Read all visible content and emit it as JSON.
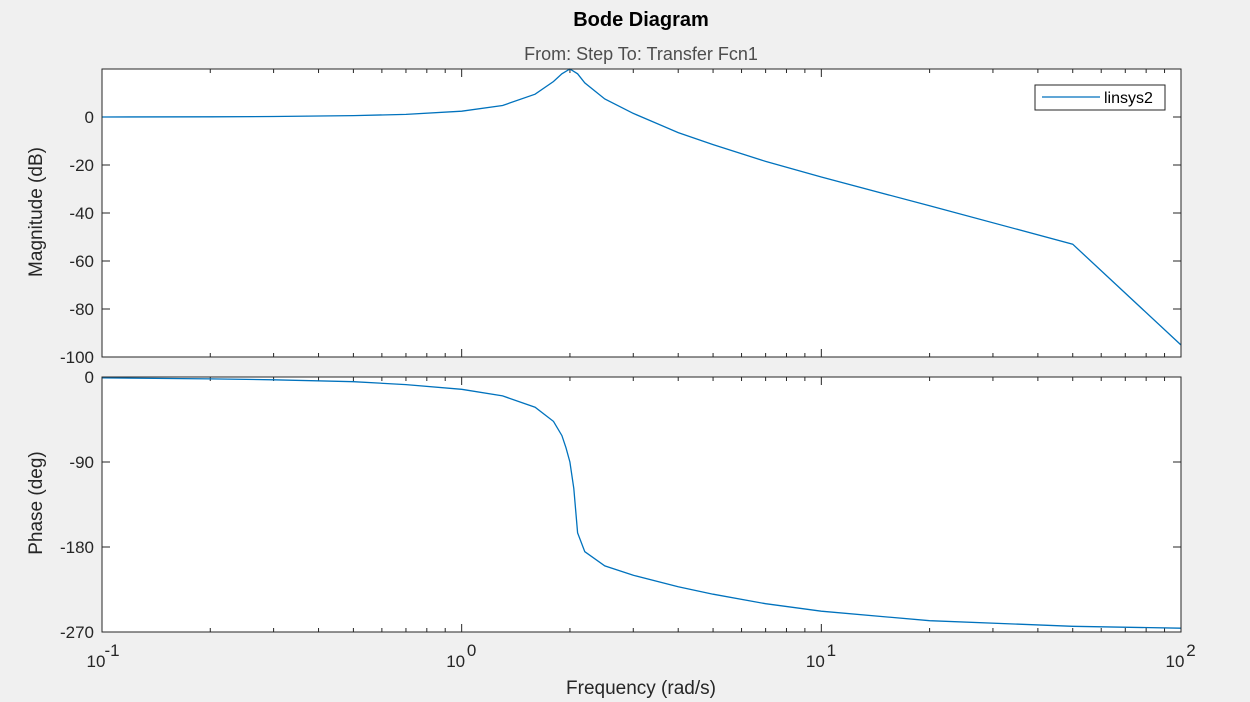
{
  "chart_data": {
    "type": "line",
    "title": "Bode Diagram",
    "subtitle": "From: Step  To: Transfer Fcn1",
    "xlabel": "Frequency  (rad/s)",
    "xscale": "log",
    "xlim": [
      0.1,
      100
    ],
    "x_ticks": [
      {
        "base": "10",
        "exp": "-1"
      },
      {
        "base": "10",
        "exp": "0"
      },
      {
        "base": "10",
        "exp": "1"
      },
      {
        "base": "10",
        "exp": "2"
      }
    ],
    "grid": false,
    "legend": {
      "entries": [
        "linsys2"
      ],
      "placement": "top-right"
    },
    "line_color": "#0072bd",
    "panels": [
      {
        "name": "magnitude",
        "ylabel": "Magnitude (dB)",
        "ylim": [
          -100,
          20
        ],
        "yticks": [
          "0",
          "-20",
          "-40",
          "-60",
          "-80",
          "-100"
        ],
        "series": [
          {
            "name": "linsys2",
            "x": [
              0.1,
              0.2,
              0.3,
              0.5,
              0.7,
              1.0,
              1.3,
              1.6,
              1.8,
              1.9,
              2.0,
              2.1,
              2.2,
              2.5,
              3,
              4,
              5,
              7,
              10,
              20,
              50,
              100
            ],
            "y": [
              0.0,
              0.1,
              0.2,
              0.6,
              1.1,
              2.4,
              4.8,
              9.5,
              14.8,
              18.0,
              20.0,
              18.0,
              14.2,
              7.5,
              1.5,
              -6.5,
              -11.5,
              -18.5,
              -25.0,
              -37.0,
              -53.0,
              -95.0
            ]
          }
        ]
      },
      {
        "name": "phase",
        "ylabel": "Phase (deg)",
        "ylim": [
          -270,
          0
        ],
        "yticks": [
          "0",
          "-90",
          "-180",
          "-270"
        ],
        "series": [
          {
            "name": "linsys2",
            "x": [
              0.1,
              0.2,
              0.3,
              0.5,
              0.7,
              1.0,
              1.3,
              1.6,
              1.8,
              1.9,
              1.95,
              2.0,
              2.05,
              2.1,
              2.2,
              2.5,
              3,
              4,
              5,
              7,
              10,
              20,
              50,
              100
            ],
            "y": [
              -1,
              -2,
              -3,
              -5,
              -8,
              -13,
              -20,
              -32,
              -47,
              -62,
              -75,
              -90,
              -118,
              -165,
              -185,
              -200,
              -210,
              -222,
              -230,
              -240,
              -248,
              -258,
              -264,
              -266
            ]
          }
        ]
      }
    ]
  }
}
